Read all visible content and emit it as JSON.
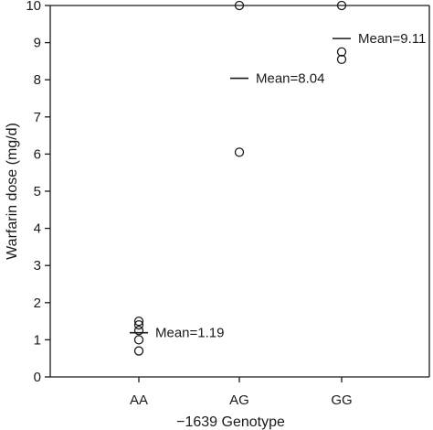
{
  "chart_data": {
    "type": "scatter",
    "title": "",
    "xlabel": "−1639 Genotype",
    "ylabel": "Warfarin dose (mg/d)",
    "categories": [
      "AA",
      "AG",
      "GG"
    ],
    "ylim": [
      0,
      10
    ],
    "yticks": [
      0,
      1,
      2,
      3,
      4,
      5,
      6,
      7,
      8,
      9,
      10
    ],
    "grid": false,
    "series": [
      {
        "points": [
          {
            "category": "AA",
            "y": 1.5
          },
          {
            "category": "AA",
            "y": 1.4
          },
          {
            "category": "AA",
            "y": 1.25
          },
          {
            "category": "AA",
            "y": 1.0
          },
          {
            "category": "AA",
            "y": 0.7
          },
          {
            "category": "AG",
            "y": 10.0
          },
          {
            "category": "AG",
            "y": 6.05
          },
          {
            "category": "GG",
            "y": 10.0
          },
          {
            "category": "GG",
            "y": 8.75
          },
          {
            "category": "GG",
            "y": 8.55
          }
        ]
      }
    ],
    "means": [
      {
        "category": "AA",
        "value": 1.19,
        "label": "Mean=1.19"
      },
      {
        "category": "AG",
        "value": 8.04,
        "label": "Mean=8.04"
      },
      {
        "category": "GG",
        "value": 9.11,
        "label": "Mean=9.11"
      }
    ]
  }
}
